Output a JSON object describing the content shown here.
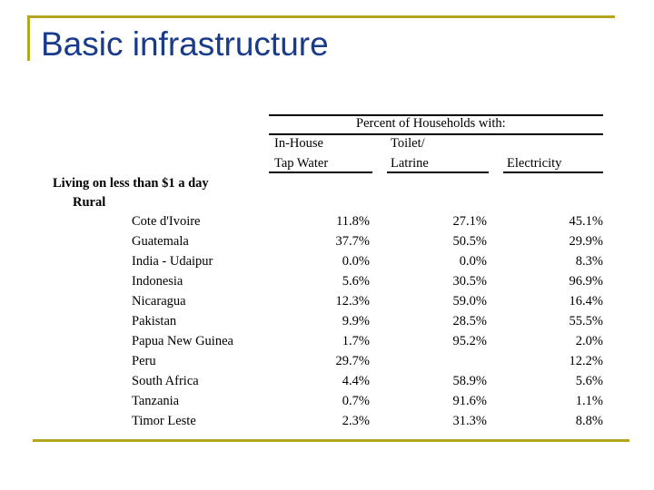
{
  "slide": {
    "title": "Basic infrastructure"
  },
  "table": {
    "super_header": "Percent of Households with:",
    "columns": [
      {
        "line1": "In-House",
        "line2": "Tap Water"
      },
      {
        "line1": "Toilet/",
        "line2": "Latrine"
      },
      {
        "line1": "",
        "line2": "Electricity"
      }
    ],
    "group_label": "Living on less than $1 a day",
    "subgroup_label": "Rural",
    "rows": [
      {
        "country": "Cote d'Ivoire",
        "tap": "11.8%",
        "toilet": "27.1%",
        "elec": "45.1%"
      },
      {
        "country": "Guatemala",
        "tap": "37.7%",
        "toilet": "50.5%",
        "elec": "29.9%"
      },
      {
        "country": "India - Udaipur",
        "tap": "0.0%",
        "toilet": "0.0%",
        "elec": "8.3%"
      },
      {
        "country": "Indonesia",
        "tap": "5.6%",
        "toilet": "30.5%",
        "elec": "96.9%"
      },
      {
        "country": "Nicaragua",
        "tap": "12.3%",
        "toilet": "59.0%",
        "elec": "16.4%"
      },
      {
        "country": "Pakistan",
        "tap": "9.9%",
        "toilet": "28.5%",
        "elec": "55.5%"
      },
      {
        "country": "Papua New Guinea",
        "tap": "1.7%",
        "toilet": "95.2%",
        "elec": "2.0%"
      },
      {
        "country": "Peru",
        "tap": "29.7%",
        "toilet": "",
        "elec": "12.2%"
      },
      {
        "country": "South Africa",
        "tap": "4.4%",
        "toilet": "58.9%",
        "elec": "5.6%"
      },
      {
        "country": "Tanzania",
        "tap": "0.7%",
        "toilet": "91.6%",
        "elec": "1.1%"
      },
      {
        "country": "Timor Leste",
        "tap": "2.3%",
        "toilet": "31.3%",
        "elec": "8.8%"
      }
    ]
  }
}
